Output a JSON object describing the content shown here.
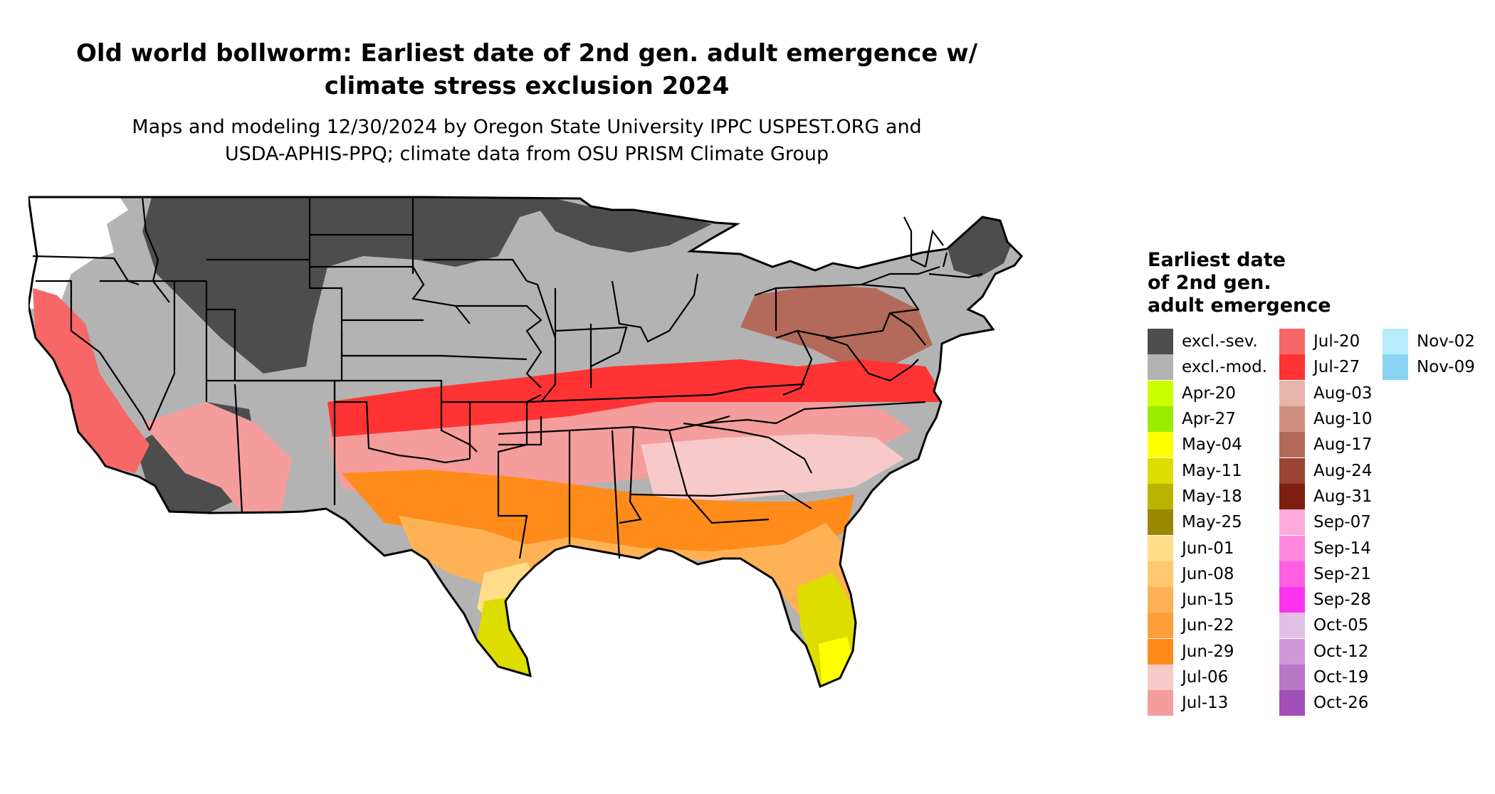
{
  "title_line1": "Old world bollworm: Earliest date of 2nd gen. adult emergence w/",
  "title_line2": "climate stress exclusion 2024",
  "subtitle_line1": "Maps and modeling 12/30/2024 by Oregon State University IPPC USPEST.ORG and",
  "subtitle_line2": "USDA-APHIS-PPQ; climate data from OSU PRISM Climate Group",
  "legend": {
    "title_line1": "Earliest date",
    "title_line2": "of 2nd gen.",
    "title_line3": "adult emergence",
    "columns": [
      [
        {
          "label": "excl.-sev.",
          "color": "#4d4d4d"
        },
        {
          "label": "excl.-mod.",
          "color": "#b3b3b3"
        },
        {
          "label": "Apr-20",
          "color": "#ccff00"
        },
        {
          "label": "Apr-27",
          "color": "#99ee00"
        },
        {
          "label": "May-04",
          "color": "#ffff00"
        },
        {
          "label": "May-11",
          "color": "#dddd00"
        },
        {
          "label": "May-18",
          "color": "#bbb300"
        },
        {
          "label": "May-25",
          "color": "#998800"
        },
        {
          "label": "Jun-01",
          "color": "#ffdd88"
        },
        {
          "label": "Jun-08",
          "color": "#ffc870"
        },
        {
          "label": "Jun-15",
          "color": "#ffb255"
        },
        {
          "label": "Jun-22",
          "color": "#ff9f3a"
        },
        {
          "label": "Jun-29",
          "color": "#ff8c1a"
        },
        {
          "label": "Jul-06",
          "color": "#f7c9c9"
        },
        {
          "label": "Jul-13",
          "color": "#f59d9d"
        }
      ],
      [
        {
          "label": "Jul-20",
          "color": "#f76767"
        },
        {
          "label": "Jul-27",
          "color": "#ff3333"
        },
        {
          "label": "Aug-03",
          "color": "#e8b4aa"
        },
        {
          "label": "Aug-10",
          "color": "#cf8f7f"
        },
        {
          "label": "Aug-17",
          "color": "#b36a5a"
        },
        {
          "label": "Aug-24",
          "color": "#9a4433"
        },
        {
          "label": "Aug-31",
          "color": "#7f1f10"
        },
        {
          "label": "Sep-07",
          "color": "#ffaadd"
        },
        {
          "label": "Sep-14",
          "color": "#ff88dd"
        },
        {
          "label": "Sep-21",
          "color": "#ff5fe0"
        },
        {
          "label": "Sep-28",
          "color": "#ff33ee"
        },
        {
          "label": "Oct-05",
          "color": "#e2bfe6"
        },
        {
          "label": "Oct-12",
          "color": "#cf99d8"
        },
        {
          "label": "Oct-19",
          "color": "#ba77c8"
        },
        {
          "label": "Oct-26",
          "color": "#a050b8"
        }
      ],
      [
        {
          "label": "Nov-02",
          "color": "#b8ecfb"
        },
        {
          "label": "Nov-09",
          "color": "#88d4f0"
        }
      ]
    ]
  }
}
